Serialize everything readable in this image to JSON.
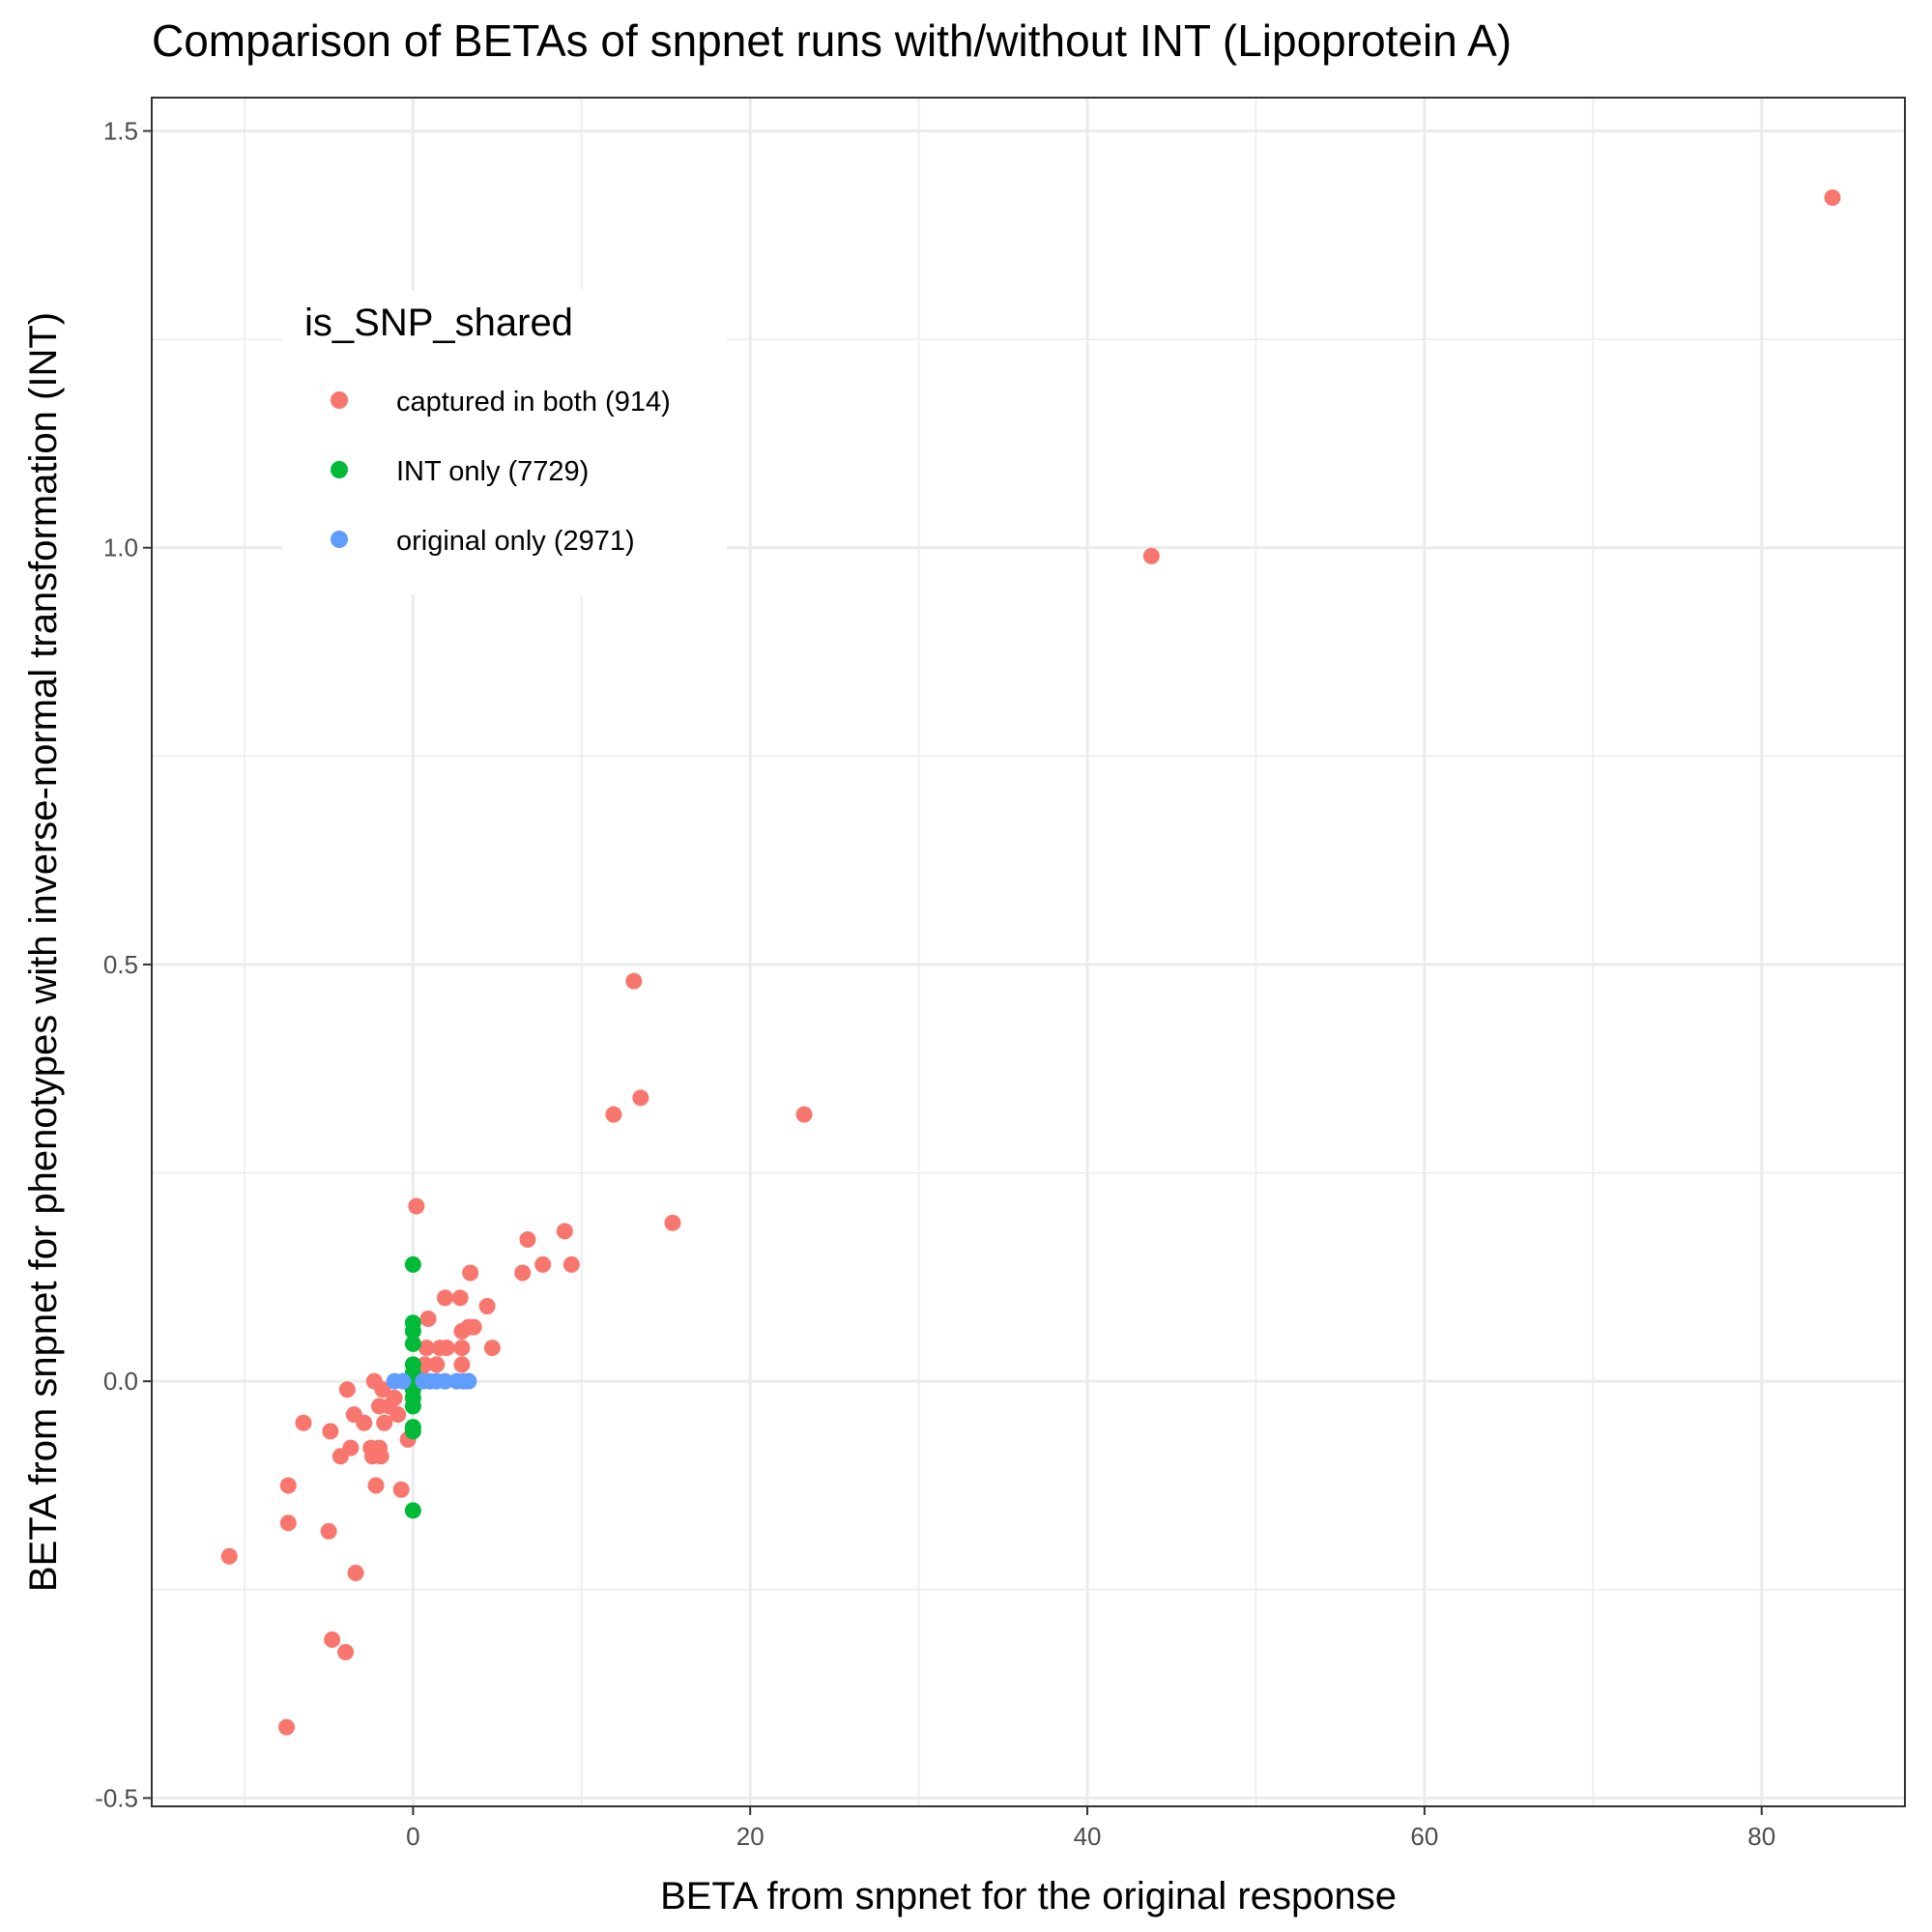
{
  "chart_data": {
    "type": "scatter",
    "title": "Comparison of BETAs of snpnet runs with/without INT (Lipoprotein A)",
    "xlabel": "BETA from snpnet for the original response",
    "ylabel": "BETA from snpnet for phenotypes with inverse-normal transformation (INT)",
    "xlim": [
      -15.5,
      88.5
    ],
    "ylim": [
      -0.51,
      1.54
    ],
    "x_ticks": [
      0,
      20,
      40,
      60,
      80
    ],
    "x_tick_labels": [
      "0",
      "20",
      "40",
      "60",
      "80"
    ],
    "y_ticks": [
      -0.5,
      0.0,
      0.5,
      1.0,
      1.5
    ],
    "y_tick_labels": [
      "-0.5",
      "0.0",
      "0.5",
      "1.0",
      "1.5"
    ],
    "grid": true,
    "legend": {
      "title": "is_SNP_shared",
      "placement": "top-left inside plot",
      "entries": [
        {
          "label": "captured in both (914)",
          "color": "#F8766D"
        },
        {
          "label": "INT only (7729)",
          "color": "#00BA38"
        },
        {
          "label": "original only (2971)",
          "color": "#619CFF"
        }
      ]
    },
    "series": [
      {
        "name": "captured in both (914)",
        "color": "#F8766D",
        "points": [
          [
            84.2,
            1.42
          ],
          [
            43.8,
            0.99
          ],
          [
            13.1,
            0.48
          ],
          [
            13.5,
            0.34
          ],
          [
            11.9,
            0.32
          ],
          [
            23.2,
            0.32
          ],
          [
            15.4,
            0.19
          ],
          [
            0.2,
            0.21
          ],
          [
            9.0,
            0.18
          ],
          [
            6.8,
            0.17
          ],
          [
            9.4,
            0.14
          ],
          [
            7.7,
            0.14
          ],
          [
            6.5,
            0.13
          ],
          [
            3.4,
            0.13
          ],
          [
            1.9,
            0.1
          ],
          [
            2.8,
            0.1
          ],
          [
            4.4,
            0.09
          ],
          [
            0.9,
            0.075
          ],
          [
            3.6,
            0.065
          ],
          [
            3.3,
            0.065
          ],
          [
            2.9,
            0.06
          ],
          [
            4.7,
            0.04
          ],
          [
            2.9,
            0.04
          ],
          [
            2.0,
            0.04
          ],
          [
            1.6,
            0.04
          ],
          [
            0.8,
            0.04
          ],
          [
            2.9,
            0.02
          ],
          [
            1.4,
            0.02
          ],
          [
            0.7,
            0.02
          ],
          [
            0.4,
            0.01
          ],
          [
            -2.3,
            0.0
          ],
          [
            -1.8,
            -0.01
          ],
          [
            -3.9,
            -0.01
          ],
          [
            -2.0,
            -0.03
          ],
          [
            -1.1,
            -0.02
          ],
          [
            -1.4,
            -0.03
          ],
          [
            -0.9,
            -0.04
          ],
          [
            -3.5,
            -0.04
          ],
          [
            -6.5,
            -0.05
          ],
          [
            -2.9,
            -0.05
          ],
          [
            -1.7,
            -0.05
          ],
          [
            -4.9,
            -0.06
          ],
          [
            -0.3,
            -0.07
          ],
          [
            -3.7,
            -0.08
          ],
          [
            -2.5,
            -0.08
          ],
          [
            -2.0,
            -0.08
          ],
          [
            -4.3,
            -0.09
          ],
          [
            -2.4,
            -0.09
          ],
          [
            -1.9,
            -0.09
          ],
          [
            -7.4,
            -0.125
          ],
          [
            -2.2,
            -0.125
          ],
          [
            -0.7,
            -0.13
          ],
          [
            -7.4,
            -0.17
          ],
          [
            -5.0,
            -0.18
          ],
          [
            -10.9,
            -0.21
          ],
          [
            -3.4,
            -0.23
          ],
          [
            -4.8,
            -0.31
          ],
          [
            -4.0,
            -0.325
          ],
          [
            -7.5,
            -0.415
          ]
        ]
      },
      {
        "name": "INT only (7729)",
        "color": "#00BA38",
        "points": [
          [
            0,
            0.14
          ],
          [
            0,
            0.07
          ],
          [
            0,
            0.06
          ],
          [
            0,
            0.045
          ],
          [
            0,
            0.02
          ],
          [
            0,
            0.01
          ],
          [
            0,
            0.0
          ],
          [
            0,
            -0.01
          ],
          [
            0,
            -0.02
          ],
          [
            0,
            -0.03
          ],
          [
            0,
            -0.055
          ],
          [
            0,
            -0.06
          ],
          [
            0,
            -0.155
          ]
        ]
      },
      {
        "name": "original only (2971)",
        "color": "#619CFF",
        "points": [
          [
            -1.1,
            0
          ],
          [
            -0.6,
            0
          ],
          [
            0.6,
            0
          ],
          [
            1.0,
            0
          ],
          [
            1.4,
            0
          ],
          [
            1.9,
            0
          ],
          [
            2.6,
            0
          ],
          [
            3.0,
            0
          ],
          [
            3.3,
            0
          ]
        ]
      }
    ]
  }
}
